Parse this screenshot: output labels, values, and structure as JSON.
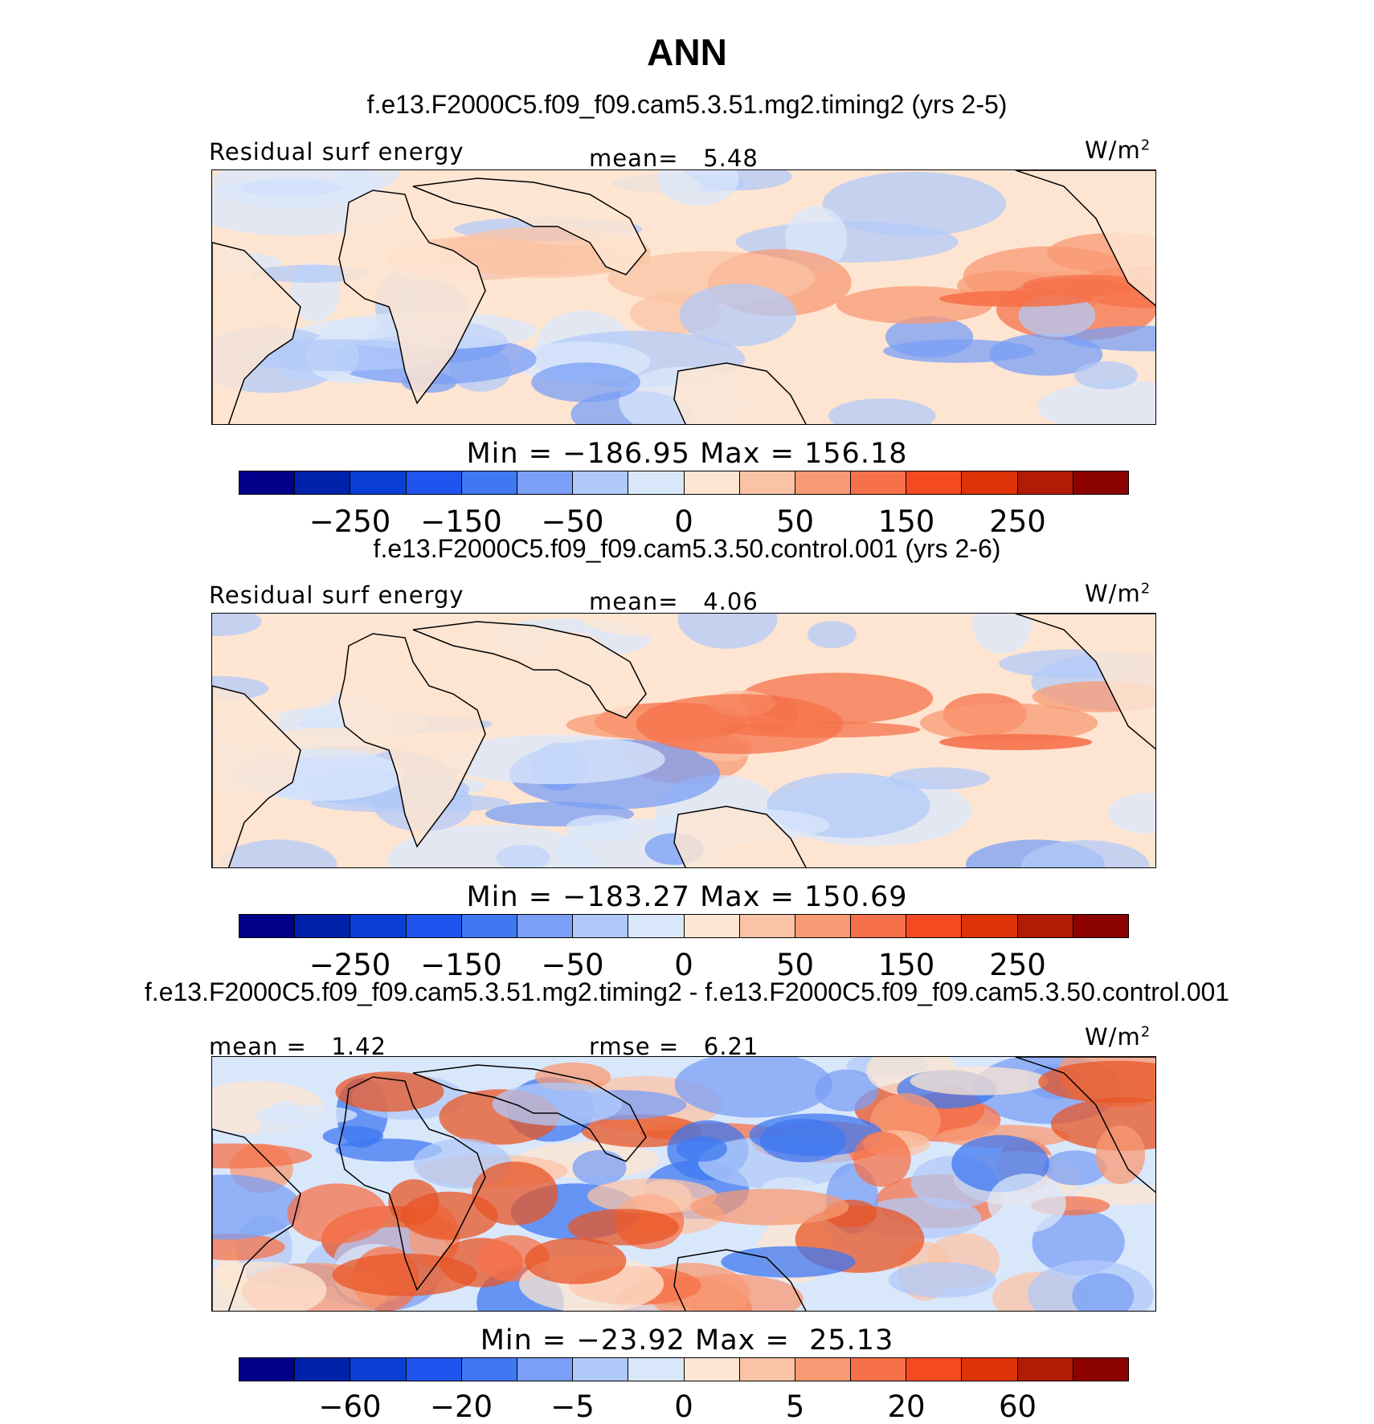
{
  "title": "ANN",
  "units": "W/m",
  "units_sup": "2",
  "colors": {
    "panel": [
      "#00008a",
      "#0022aa",
      "#0b3ed4",
      "#1f55ee",
      "#3f78f2",
      "#7a9ff5",
      "#b1c9f8",
      "#d9e7fb",
      "#fde5d2",
      "#fbc3a6",
      "#f89a73",
      "#f6714a",
      "#f44a22",
      "#dd3306",
      "#b21b04",
      "#8b0000"
    ],
    "palette": [
      "#3f78f2",
      "#7a9ff5",
      "#b1c9f8",
      "#d9e7fb",
      "#fde5d2",
      "#fbc3a6",
      "#f89a73",
      "#f6714a",
      "#e85526"
    ]
  },
  "panels": [
    {
      "case": "f.e13.F2000C5.f09_f09.cam5.3.51.mg2.timing2 (yrs 2-5)",
      "left_label": "Residual surf energy",
      "center_label": "mean=   5.48",
      "minmax": "Min = −186.95 Max = 156.18",
      "ticks": [
        "−250",
        "−150",
        "−50",
        "0",
        "50",
        "150",
        "250"
      ]
    },
    {
      "case": "f.e13.F2000C5.f09_f09.cam5.3.50.control.001 (yrs 2-6)",
      "left_label": "Residual surf energy",
      "center_label": "mean=   4.06",
      "minmax": "Min = −183.27 Max = 150.69",
      "ticks": [
        "−250",
        "−150",
        "−50",
        "0",
        "50",
        "150",
        "250"
      ]
    },
    {
      "case": "f.e13.F2000C5.f09_f09.cam5.3.51.mg2.timing2 - f.e13.F2000C5.f09_f09.cam5.3.50.control.001",
      "left_label": "mean =   1.42",
      "center_label": "rmse =   6.21",
      "minmax": "Min = −23.92 Max =  25.13",
      "ticks": [
        "−60",
        "−20",
        "−5",
        "0",
        "5",
        "20",
        "60"
      ]
    }
  ]
}
